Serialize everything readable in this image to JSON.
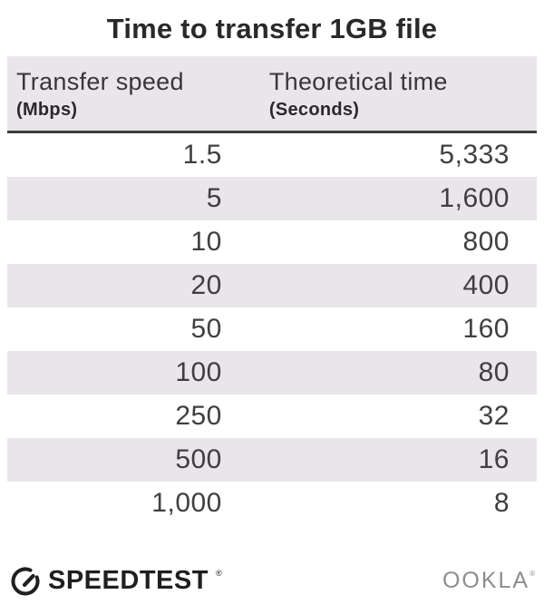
{
  "title": "Time to transfer 1GB file",
  "table": {
    "headers": [
      {
        "label": "Transfer speed",
        "unit": "(Mbps)"
      },
      {
        "label": "Theoretical time",
        "unit": "(Seconds)"
      }
    ],
    "rows": [
      {
        "speed": "1.5",
        "time": "5,333"
      },
      {
        "speed": "5",
        "time": "1,600"
      },
      {
        "speed": "10",
        "time": "800"
      },
      {
        "speed": "20",
        "time": "400"
      },
      {
        "speed": "50",
        "time": "160"
      },
      {
        "speed": "100",
        "time": "80"
      },
      {
        "speed": "250",
        "time": "32"
      },
      {
        "speed": "500",
        "time": "16"
      },
      {
        "speed": "1,000",
        "time": "8"
      }
    ]
  },
  "footer": {
    "speedtest_label": "SPEEDTEST",
    "speedtest_mark": "®",
    "ookla_label": "OOKLA",
    "ookla_mark": "®",
    "gauge_icon": "speedometer-gauge-icon"
  },
  "colors": {
    "stripe_gray": "#e8e6e9",
    "text_dark": "#2b282b",
    "text_number": "#413e42",
    "divider": "#3f3c3f",
    "ookla_gray": "#8d8d8d"
  },
  "chart_data": {
    "type": "table",
    "title": "Time to transfer 1GB file",
    "columns": [
      "Transfer speed (Mbps)",
      "Theoretical time (Seconds)"
    ],
    "rows": [
      [
        1.5,
        5333
      ],
      [
        5,
        1600
      ],
      [
        10,
        800
      ],
      [
        20,
        400
      ],
      [
        50,
        160
      ],
      [
        100,
        80
      ],
      [
        250,
        32
      ],
      [
        500,
        16
      ],
      [
        1000,
        8
      ]
    ],
    "layout": {
      "zebra_striping": true,
      "value_alignment": "right"
    }
  }
}
